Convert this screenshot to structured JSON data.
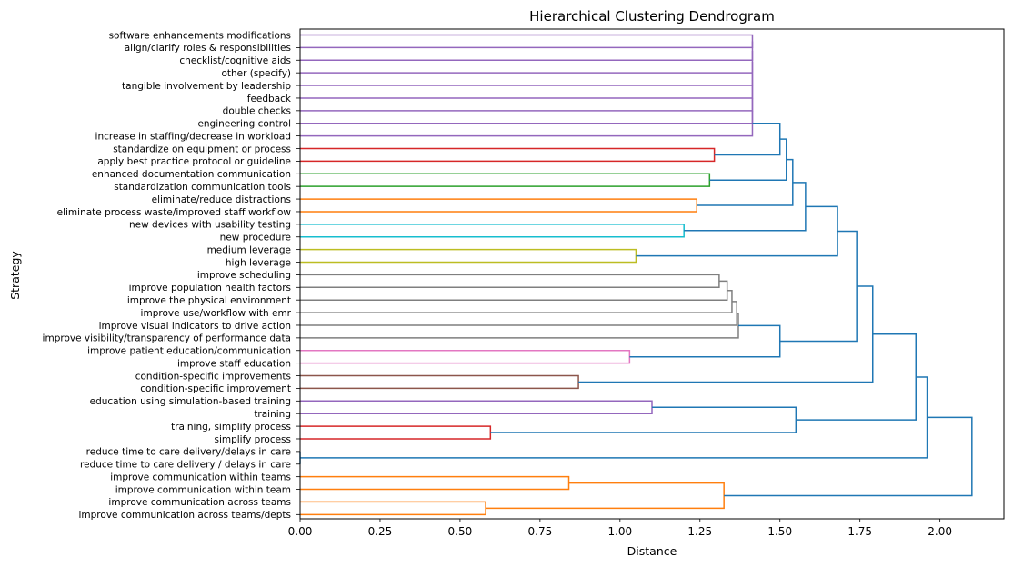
{
  "chart_data": {
    "type": "dendrogram",
    "title": "Hierarchical Clustering Dendrogram",
    "xlabel": "Distance",
    "ylabel": "Strategy",
    "xlim": [
      0,
      2.2
    ],
    "xticks": [
      "0.00",
      "0.25",
      "0.50",
      "0.75",
      "1.00",
      "1.25",
      "1.50",
      "1.75",
      "2.00"
    ],
    "xtick_values": [
      0,
      0.25,
      0.5,
      0.75,
      1.0,
      1.25,
      1.5,
      1.75,
      2.0
    ],
    "leaves": [
      "software enhancements modifications",
      "align/clarify roles & responsibilities",
      "checklist/cognitive aids",
      "other (specify)",
      "tangible involvement by leadership",
      "feedback",
      "double checks",
      "engineering control",
      "increase in staffing/decrease in workload",
      "standardize on equipment or process",
      "apply best practice protocol or guideline",
      "enhanced documentation communication",
      "standardization communication tools",
      "eliminate/reduce distractions",
      "eliminate process waste/improved staff workflow",
      "new devices with usability testing",
      "new procedure",
      "medium leverage",
      "high leverage",
      "improve scheduling",
      "improve population health factors",
      "improve the physical environment",
      "improve use/workflow with emr",
      "improve visual indicators to drive action",
      "improve visibility/transparency of performance data",
      "improve patient education/communication",
      "improve staff education",
      "condition-specific improvements",
      "condition-specific improvement",
      "education using simulation-based training",
      "training",
      "training, simplify process",
      "simplify process",
      "reduce time to care delivery/delays in care",
      "reduce time to care delivery / delays in care",
      "improve communication within teams",
      "improve communication within team",
      "improve communication across teams",
      "improve communication across teams/depts"
    ],
    "merges": [
      {
        "a": "L0",
        "b": "L1",
        "d": 1.414,
        "color": "#9467bd"
      },
      {
        "a": "M0",
        "b": "L2",
        "d": 1.414,
        "color": "#9467bd"
      },
      {
        "a": "M1",
        "b": "L3",
        "d": 1.414,
        "color": "#9467bd"
      },
      {
        "a": "M2",
        "b": "L4",
        "d": 1.414,
        "color": "#9467bd"
      },
      {
        "a": "M3",
        "b": "L5",
        "d": 1.414,
        "color": "#9467bd"
      },
      {
        "a": "M4",
        "b": "L6",
        "d": 1.414,
        "color": "#9467bd"
      },
      {
        "a": "M5",
        "b": "L7",
        "d": 1.414,
        "color": "#9467bd"
      },
      {
        "a": "M6",
        "b": "L8",
        "d": 1.414,
        "color": "#9467bd"
      },
      {
        "a": "L9",
        "b": "L10",
        "d": 1.295,
        "color": "#d62728"
      },
      {
        "a": "M7",
        "b": "M8",
        "d": 1.5,
        "color": "#1f77b4"
      },
      {
        "a": "L11",
        "b": "L12",
        "d": 1.28,
        "color": "#2ca02c"
      },
      {
        "a": "M9",
        "b": "M10",
        "d": 1.52,
        "color": "#1f77b4"
      },
      {
        "a": "L13",
        "b": "L14",
        "d": 1.24,
        "color": "#ff7f0e"
      },
      {
        "a": "M11",
        "b": "M12",
        "d": 1.54,
        "color": "#1f77b4"
      },
      {
        "a": "L15",
        "b": "L16",
        "d": 1.2,
        "color": "#17becf"
      },
      {
        "a": "M13",
        "b": "M14",
        "d": 1.58,
        "color": "#1f77b4"
      },
      {
        "a": "L17",
        "b": "L18",
        "d": 1.05,
        "color": "#bcbd22"
      },
      {
        "a": "M15",
        "b": "M16",
        "d": 1.68,
        "color": "#1f77b4"
      },
      {
        "a": "L19",
        "b": "L20",
        "d": 1.31,
        "color": "#7f7f7f"
      },
      {
        "a": "M18",
        "b": "L21",
        "d": 1.335,
        "color": "#7f7f7f"
      },
      {
        "a": "M19",
        "b": "L22",
        "d": 1.35,
        "color": "#7f7f7f"
      },
      {
        "a": "M20",
        "b": "L23",
        "d": 1.365,
        "color": "#7f7f7f"
      },
      {
        "a": "M21",
        "b": "L24",
        "d": 1.37,
        "color": "#7f7f7f"
      },
      {
        "a": "L25",
        "b": "L26",
        "d": 1.03,
        "color": "#e377c2"
      },
      {
        "a": "M22",
        "b": "M23",
        "d": 1.5,
        "color": "#1f77b4"
      },
      {
        "a": "M17",
        "b": "M24",
        "d": 1.74,
        "color": "#1f77b4"
      },
      {
        "a": "L27",
        "b": "L28",
        "d": 0.87,
        "color": "#8c564b"
      },
      {
        "a": "M25",
        "b": "M26",
        "d": 1.79,
        "color": "#1f77b4"
      },
      {
        "a": "L29",
        "b": "L30",
        "d": 1.1,
        "color": "#9467bd"
      },
      {
        "a": "L31",
        "b": "L32",
        "d": 0.595,
        "color": "#d62728"
      },
      {
        "a": "M28",
        "b": "M29",
        "d": 1.55,
        "color": "#1f77b4"
      },
      {
        "a": "M27",
        "b": "M30",
        "d": 1.925,
        "color": "#1f77b4"
      },
      {
        "a": "L33",
        "b": "L34",
        "d": 0.0,
        "color": "#1f77b4"
      },
      {
        "a": "M31",
        "b": "M32",
        "d": 1.96,
        "color": "#1f77b4"
      },
      {
        "a": "L35",
        "b": "L36",
        "d": 0.84,
        "color": "#ff7f0e"
      },
      {
        "a": "L37",
        "b": "L38",
        "d": 0.58,
        "color": "#ff7f0e"
      },
      {
        "a": "M34",
        "b": "M35",
        "d": 1.325,
        "color": "#ff7f0e"
      },
      {
        "a": "M33",
        "b": "M36",
        "d": 2.1,
        "color": "#1f77b4"
      }
    ]
  }
}
